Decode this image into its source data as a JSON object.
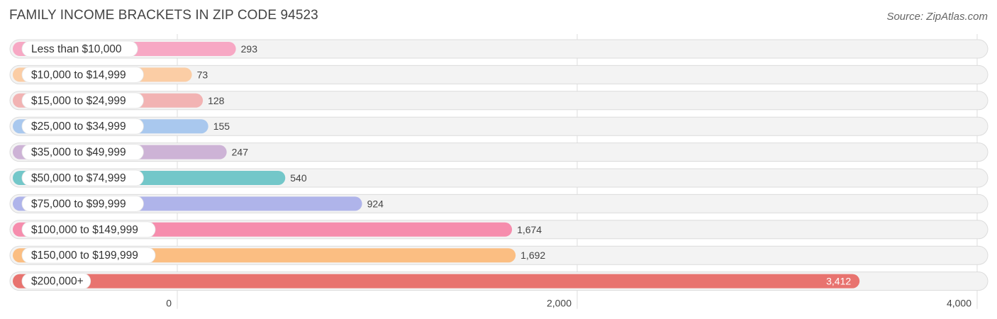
{
  "chart_data": {
    "type": "bar",
    "orientation": "horizontal",
    "title": "FAMILY INCOME BRACKETS IN ZIP CODE 94523",
    "source": "Source: ZipAtlas.com",
    "categories": [
      "Less than $10,000",
      "$10,000 to $14,999",
      "$15,000 to $24,999",
      "$25,000 to $34,999",
      "$35,000 to $49,999",
      "$50,000 to $74,999",
      "$75,000 to $99,999",
      "$100,000 to $149,999",
      "$150,000 to $199,999",
      "$200,000+"
    ],
    "values": [
      293,
      73,
      128,
      155,
      247,
      540,
      924,
      1674,
      1692,
      3412
    ],
    "value_labels": [
      "293",
      "73",
      "128",
      "155",
      "247",
      "540",
      "924",
      "1,674",
      "1,692",
      "3,412"
    ],
    "colors": [
      "#f7a8c4",
      "#fbcda5",
      "#f2b3b3",
      "#a9c8ee",
      "#cdb3d6",
      "#73c7c9",
      "#afb4ea",
      "#f68dad",
      "#fbbe82",
      "#e8736f"
    ],
    "xlim": [
      0,
      4000
    ],
    "xticks": [
      0,
      2000,
      4000
    ],
    "xtick_labels": [
      "0",
      "2,000",
      "4,000"
    ],
    "grid": true
  }
}
